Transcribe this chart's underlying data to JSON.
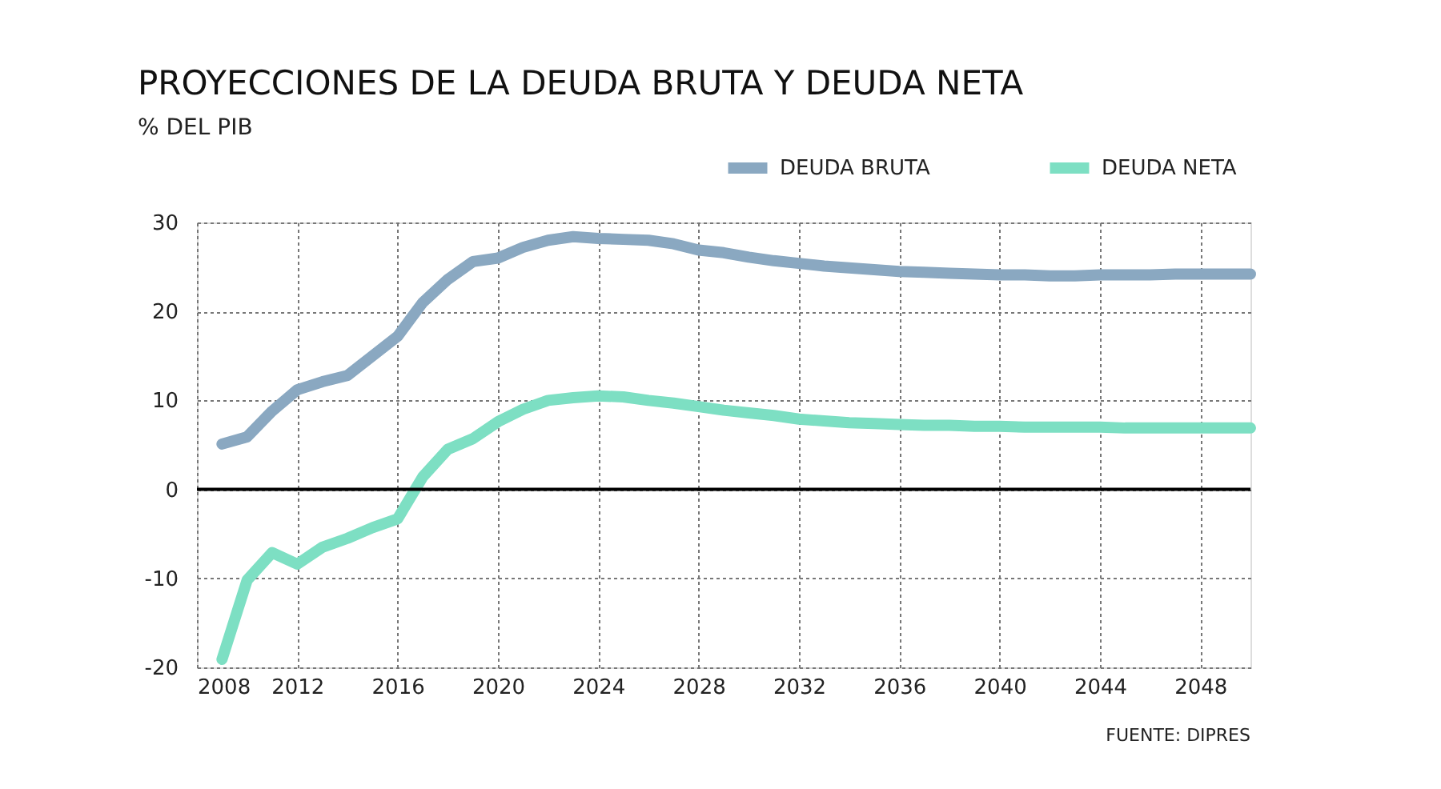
{
  "chart_data": {
    "type": "line",
    "title": "PROYECCIONES DE LA DEUDA BRUTA Y DEUDA NETA",
    "subtitle": "% DEL PIB",
    "x": [
      2009,
      2010,
      2011,
      2012,
      2013,
      2014,
      2015,
      2016,
      2017,
      2018,
      2019,
      2020,
      2021,
      2022,
      2023,
      2024,
      2025,
      2026,
      2027,
      2028,
      2029,
      2030,
      2031,
      2032,
      2033,
      2034,
      2035,
      2036,
      2037,
      2038,
      2039,
      2040,
      2041,
      2042,
      2043,
      2044,
      2045,
      2046,
      2047,
      2048,
      2049,
      2050
    ],
    "series": [
      {
        "name": "DEUDA BRUTA",
        "color": "#8aa8c1",
        "values": [
          5.1,
          5.9,
          8.8,
          11.2,
          12.1,
          12.8,
          15.0,
          17.2,
          21.0,
          23.6,
          25.6,
          26.0,
          27.2,
          28.0,
          28.4,
          28.2,
          28.1,
          28.0,
          27.6,
          26.9,
          26.6,
          26.1,
          25.7,
          25.4,
          25.1,
          24.9,
          24.7,
          24.5,
          24.4,
          24.3,
          24.2,
          24.1,
          24.1,
          24.0,
          24.0,
          24.1,
          24.1,
          24.1,
          24.2,
          24.2,
          24.2,
          24.2
        ]
      },
      {
        "name": "DEUDA NETA",
        "color": "#7ddfc3",
        "values": [
          -19.1,
          -10.2,
          -7.1,
          -8.4,
          -6.5,
          -5.5,
          -4.3,
          -3.3,
          1.4,
          4.5,
          5.7,
          7.6,
          9.0,
          10.0,
          10.3,
          10.5,
          10.4,
          10.0,
          9.7,
          9.3,
          8.9,
          8.6,
          8.3,
          7.9,
          7.7,
          7.5,
          7.4,
          7.3,
          7.2,
          7.2,
          7.1,
          7.1,
          7.0,
          7.0,
          7.0,
          7.0,
          6.9,
          6.9,
          6.9,
          6.9,
          6.9,
          6.9
        ]
      }
    ],
    "xlim": [
      2008,
      2050
    ],
    "xticks": [
      2008,
      2012,
      2016,
      2020,
      2024,
      2028,
      2032,
      2036,
      2040,
      2044,
      2048
    ],
    "ylim": [
      -20,
      30
    ],
    "yticks": [
      -20,
      -10,
      0,
      10,
      20,
      30
    ],
    "ref_lines": [
      {
        "axis": "y",
        "value": 0,
        "color": "#000000"
      }
    ],
    "grid": true,
    "legend": "top right",
    "line_style": "solid",
    "annotations": [
      "FUENTE: DIPRES"
    ]
  }
}
